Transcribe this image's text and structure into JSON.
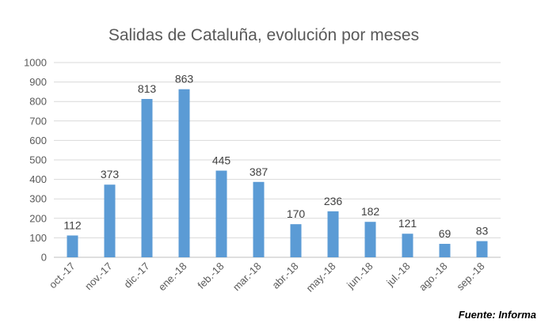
{
  "chart_data": {
    "type": "bar",
    "title": "Salidas de Cataluña, evolución por meses",
    "categories": [
      "oct.-17",
      "nov.-17",
      "dic.-17",
      "ene.-18",
      "feb.-18",
      "mar.-18",
      "abr.-18",
      "may.-18",
      "jun.-18",
      "jul.-18",
      "ago.-18",
      "sep.-18"
    ],
    "values": [
      112,
      373,
      813,
      863,
      445,
      387,
      170,
      236,
      182,
      121,
      69,
      83
    ],
    "yticks": [
      0,
      100,
      200,
      300,
      400,
      500,
      600,
      700,
      800,
      900,
      1000
    ],
    "ylim": [
      0,
      1000
    ],
    "xlabel": "",
    "ylabel": "",
    "grid": true,
    "bar_color": "#5b9bd5"
  },
  "source": "Fuente: Informa"
}
